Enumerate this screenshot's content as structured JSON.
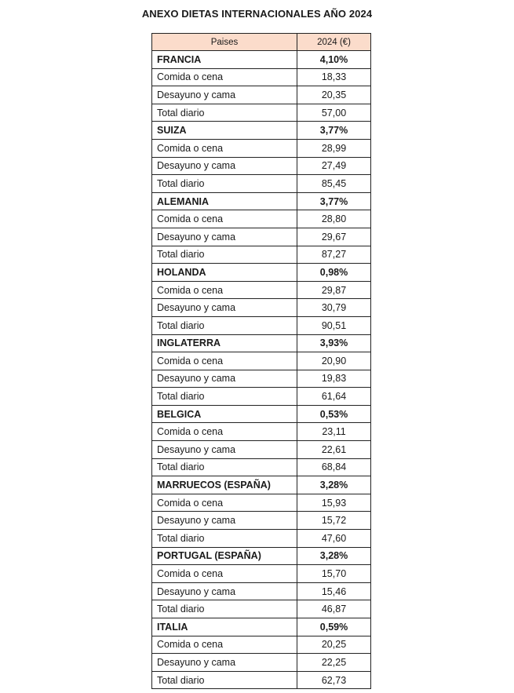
{
  "title": "ANEXO DIETAS INTERNACIONALES AÑO 2024",
  "header_fill": "#fbdccb",
  "columns": [
    "Paises",
    "2024 (€)"
  ],
  "countries": [
    {
      "name": "FRANCIA",
      "pct": "4,10%",
      "rows": [
        [
          "Comida o cena",
          "18,33"
        ],
        [
          "Desayuno y cama",
          "20,35"
        ],
        [
          "Total diario",
          "57,00"
        ]
      ]
    },
    {
      "name": "SUIZA",
      "pct": "3,77%",
      "rows": [
        [
          "Comida o cena",
          "28,99"
        ],
        [
          "Desayuno y cama",
          "27,49"
        ],
        [
          "Total diario",
          "85,45"
        ]
      ]
    },
    {
      "name": "ALEMANIA",
      "pct": "3,77%",
      "rows": [
        [
          "Comida o cena",
          "28,80"
        ],
        [
          "Desayuno y cama",
          "29,67"
        ],
        [
          "Total diario",
          "87,27"
        ]
      ]
    },
    {
      "name": "HOLANDA",
      "pct": "0,98%",
      "rows": [
        [
          "Comida o cena",
          "29,87"
        ],
        [
          "Desayuno y cama",
          "30,79"
        ],
        [
          "Total diario",
          "90,51"
        ]
      ]
    },
    {
      "name": "INGLATERRA",
      "pct": "3,93%",
      "rows": [
        [
          "Comida o cena",
          "20,90"
        ],
        [
          "Desayuno y cama",
          "19,83"
        ],
        [
          "Total diario",
          "61,64"
        ]
      ]
    },
    {
      "name": "BELGICA",
      "pct": "0,53%",
      "rows": [
        [
          "Comida o cena",
          "23,11"
        ],
        [
          "Desayuno y cama",
          "22,61"
        ],
        [
          "Total diario",
          "68,84"
        ]
      ]
    },
    {
      "name": "MARRUECOS (ESPAÑA)",
      "pct": "3,28%",
      "rows": [
        [
          "Comida o cena",
          "15,93"
        ],
        [
          "Desayuno y cama",
          "15,72"
        ],
        [
          "Total diario",
          "47,60"
        ]
      ]
    },
    {
      "name": "PORTUGAL (ESPAÑA)",
      "pct": "3,28%",
      "rows": [
        [
          "Comida o cena",
          "15,70"
        ],
        [
          "Desayuno y cama",
          "15,46"
        ],
        [
          "Total diario",
          "46,87"
        ]
      ]
    },
    {
      "name": "ITALIA",
      "pct": "0,59%",
      "rows": [
        [
          "Comida o cena",
          "20,25"
        ],
        [
          "Desayuno y cama",
          "22,25"
        ],
        [
          "Total diario",
          "62,73"
        ]
      ]
    }
  ]
}
